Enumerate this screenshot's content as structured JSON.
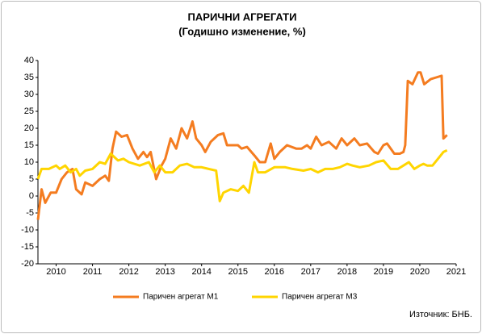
{
  "chart_data": {
    "type": "line",
    "title": "ПАРИЧНИ АГРЕГАТИ",
    "subtitle": "(Годишно изменение, %)",
    "source": "Източник: БНБ.",
    "xlim": [
      2009.5,
      2021
    ],
    "xticks": [
      2010,
      2011,
      2012,
      2013,
      2014,
      2015,
      2016,
      2017,
      2018,
      2019,
      2020,
      2021
    ],
    "ylim": [
      -20,
      40
    ],
    "yticks": [
      -20,
      -15,
      -10,
      -5,
      0,
      5,
      10,
      15,
      20,
      25,
      30,
      35,
      40
    ],
    "grid": false,
    "legend": "bottom",
    "series": [
      {
        "name": "Паричен агрегат М1",
        "color": "#f47c20",
        "x": [
          2009.5,
          2009.6,
          2009.7,
          2009.85,
          2010.0,
          2010.15,
          2010.3,
          2010.45,
          2010.55,
          2010.7,
          2010.8,
          2011.0,
          2011.2,
          2011.35,
          2011.45,
          2011.55,
          2011.65,
          2011.8,
          2011.95,
          2012.1,
          2012.25,
          2012.4,
          2012.5,
          2012.6,
          2012.75,
          2012.9,
          2013.0,
          2013.15,
          2013.3,
          2013.45,
          2013.6,
          2013.75,
          2013.85,
          2014.0,
          2014.1,
          2014.25,
          2014.45,
          2014.6,
          2014.7,
          2015.0,
          2015.1,
          2015.25,
          2015.45,
          2015.6,
          2015.75,
          2015.9,
          2016.0,
          2016.15,
          2016.35,
          2016.6,
          2016.75,
          2016.9,
          2017.0,
          2017.15,
          2017.3,
          2017.5,
          2017.7,
          2017.85,
          2018.0,
          2018.2,
          2018.35,
          2018.55,
          2018.75,
          2018.85,
          2019.0,
          2019.1,
          2019.3,
          2019.45,
          2019.55,
          2019.6,
          2019.67,
          2019.8,
          2019.95,
          2020.02,
          2020.12,
          2020.3,
          2020.45,
          2020.6,
          2020.65,
          2020.75
        ],
        "values": [
          -7,
          2,
          -2,
          1,
          1,
          5,
          7,
          8,
          2,
          0.5,
          4,
          3,
          5,
          6,
          4.5,
          14,
          19,
          17.5,
          18,
          14,
          11,
          13,
          11.5,
          13,
          5,
          9,
          11,
          17,
          14,
          20,
          17,
          22,
          17,
          15,
          13,
          16,
          18,
          18.5,
          15,
          15,
          14,
          14.5,
          12,
          10,
          10,
          15.5,
          11,
          13,
          15,
          14,
          14,
          15,
          14,
          17.5,
          15,
          16,
          14,
          17,
          15,
          17,
          15,
          15.5,
          13,
          12.5,
          15,
          15.5,
          12.5,
          12.5,
          13,
          15,
          34,
          33,
          36.5,
          36.5,
          33,
          34.5,
          35,
          35.5,
          17,
          18
        ]
      },
      {
        "name": "Паричен агрегат М3",
        "color": "#ffd500",
        "x": [
          2009.5,
          2009.6,
          2009.8,
          2010.0,
          2010.1,
          2010.25,
          2010.4,
          2010.55,
          2010.65,
          2010.8,
          2011.0,
          2011.2,
          2011.35,
          2011.5,
          2011.7,
          2011.85,
          2012.0,
          2012.3,
          2012.55,
          2012.7,
          2012.85,
          2013.0,
          2013.2,
          2013.4,
          2013.6,
          2013.8,
          2014.0,
          2014.2,
          2014.4,
          2014.5,
          2014.6,
          2014.8,
          2015.0,
          2015.15,
          2015.3,
          2015.45,
          2015.55,
          2015.75,
          2016.0,
          2016.3,
          2016.5,
          2016.8,
          2017.0,
          2017.2,
          2017.4,
          2017.6,
          2017.8,
          2018.0,
          2018.15,
          2018.35,
          2018.6,
          2018.8,
          2019.0,
          2019.2,
          2019.4,
          2019.55,
          2019.7,
          2019.85,
          2020.0,
          2020.1,
          2020.2,
          2020.35,
          2020.5,
          2020.65,
          2020.75
        ],
        "values": [
          5,
          8,
          8,
          9,
          8,
          9,
          7,
          8,
          6,
          7.5,
          8,
          10,
          9.5,
          12.5,
          10.5,
          11,
          10,
          9,
          10,
          7,
          9,
          7,
          7,
          9,
          9.5,
          8.5,
          8.5,
          8,
          7.5,
          -1.5,
          1,
          2,
          1.5,
          3,
          1,
          10,
          7,
          7,
          8.5,
          8.5,
          8,
          7.5,
          8,
          7,
          8,
          8,
          8.5,
          9.5,
          9,
          8.5,
          9,
          10,
          10.5,
          8,
          8,
          9,
          10,
          8,
          9,
          9.5,
          9,
          9,
          11,
          13,
          13.5
        ]
      }
    ]
  }
}
